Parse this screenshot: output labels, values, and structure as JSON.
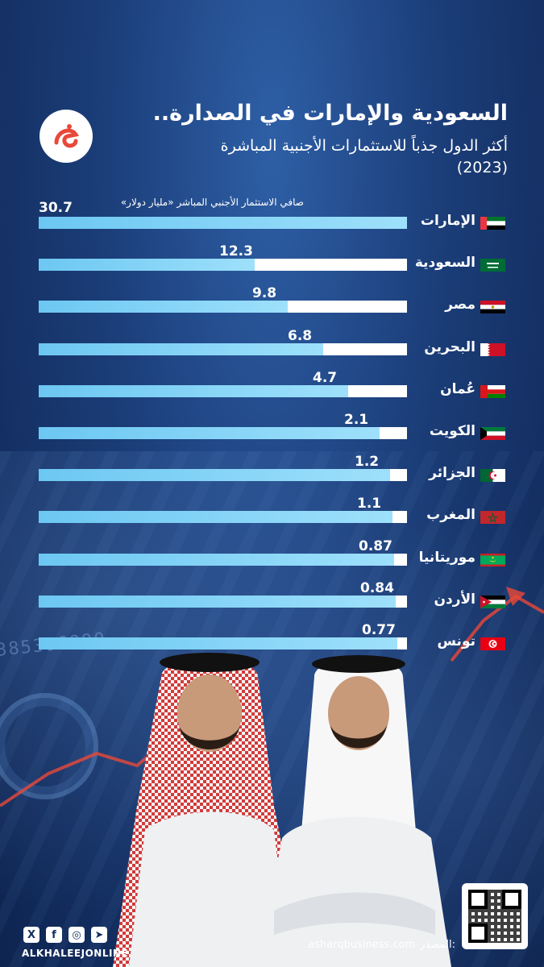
{
  "header": {
    "title": "السعودية والإمارات في الصدارة..",
    "subtitle_line1": "أكثر الدول جذباً للاستثمارات الأجنبية المباشرة",
    "subtitle_line2": "(2023)",
    "unit_label": "صافي الاستثمار الأجنبي المباشر «مليار دولار»"
  },
  "chart_data": {
    "type": "bar",
    "orientation": "horizontal",
    "categories": [
      "الإمارات",
      "السعودية",
      "مصر",
      "البحرين",
      "عُمان",
      "الكويت",
      "الجزائر",
      "المغرب",
      "موريتانيا",
      "الأردن",
      "تونس"
    ],
    "values": [
      30.7,
      12.3,
      9.8,
      6.8,
      4.7,
      2.1,
      1.2,
      1.1,
      0.87,
      0.84,
      0.77
    ],
    "value_labels": [
      "30.7",
      "12.3",
      "9.8",
      "6.8",
      "4.7",
      "2.1",
      "1.2",
      "1.1",
      "0.87",
      "0.84",
      "0.77"
    ],
    "title": "",
    "xlabel": "",
    "ylabel": "صافي الاستثمار الأجنبي المباشر «مليار دولار»",
    "xlim": [
      0,
      30.7
    ],
    "grid": false,
    "colors": {
      "fill": "#7fd3f7",
      "track": "#ffffff"
    }
  },
  "flags": [
    "uae-flag-icon",
    "saudi-flag-icon",
    "egypt-flag-icon",
    "bahrain-flag-icon",
    "oman-flag-icon",
    "kuwait-flag-icon",
    "algeria-flag-icon",
    "morocco-flag-icon",
    "mauritania-flag-icon",
    "jordan-flag-icon",
    "tunisia-flag-icon"
  ],
  "footer": {
    "source_label": "المصدر:",
    "source_value": "asharqbusiness.com",
    "handle": "ALKHALEEJONLINE",
    "social_icons": [
      "x-icon",
      "facebook-icon",
      "instagram-icon",
      "telegram-icon"
    ]
  },
  "colors": {
    "background": "#1b3d78",
    "accent": "#e8493a"
  }
}
